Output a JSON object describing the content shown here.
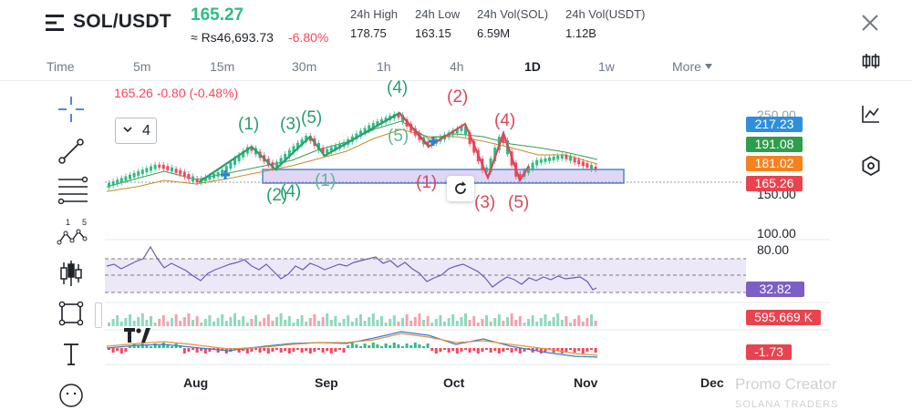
{
  "header": {
    "pair": "SOL/USDT",
    "last_price": "165.27",
    "fiat_price": "≈ Rs46,693.73",
    "pct_change": "-6.80%",
    "stats": [
      {
        "label": "24h High",
        "value": "178.75"
      },
      {
        "label": "24h Low",
        "value": "163.15"
      },
      {
        "label": "24h Vol(SOL)",
        "value": "6.59M"
      },
      {
        "label": "24h Vol(USDT)",
        "value": "1.12B"
      }
    ]
  },
  "timeframes": {
    "items": [
      "Time",
      "5m",
      "15m",
      "30m",
      "1h",
      "4h",
      "1D",
      "1w"
    ],
    "active": "1D",
    "more_label": "More"
  },
  "chart": {
    "ohlc_text": "165.26  -0.80 (-0.48%)",
    "wave_count": "4",
    "price_tags": [
      {
        "value": "217.23",
        "color": "#2f8fdd"
      },
      {
        "value": "191.08",
        "color": "#2e9e4c"
      },
      {
        "value": "181.02",
        "color": "#f5821f"
      },
      {
        "value": "165.26",
        "color": "#e8434e"
      }
    ],
    "axis_labels": [
      "250.00",
      "150.00",
      "100.00",
      "80.00"
    ],
    "rsi_value": "32.82",
    "rsi_color": "#7b5fc4",
    "volume_value": "595.669 K",
    "volume_color": "#e8434e",
    "macd_value": "-1.73",
    "macd_color": "#e8434e",
    "date_labels": [
      "Aug",
      "Sep",
      "Oct",
      "Nov",
      "Dec"
    ],
    "watermark": "Promo Creator",
    "watermark_sub": "SOLANA TRADERS",
    "wave_labels_green": [
      "(1)",
      "(2)",
      "(3)",
      "(4)",
      "(5)",
      "(4)",
      "(5)",
      "(2)",
      "(1)"
    ],
    "wave_labels_red": [
      "(1)",
      "(2)",
      "(3)",
      "(4)",
      "(5)"
    ]
  },
  "colors": {
    "up": "#2ebd85",
    "down": "#f6465d",
    "wave_green": "#2a9d6f",
    "wave_red": "#d9475a",
    "zone_fill": "#d9d0f2",
    "zone_border": "#4f86d6"
  },
  "icons": {
    "left_tools": [
      "crosshair-icon",
      "trendline-icon",
      "fib-retracement-icon",
      "pattern-icon",
      "candle-indicator-icon",
      "rectangle-icon",
      "text-icon",
      "emoji-icon"
    ],
    "right_tools": [
      "candle-type-icon",
      "indicator-icon",
      "settings-hex-icon"
    ]
  }
}
